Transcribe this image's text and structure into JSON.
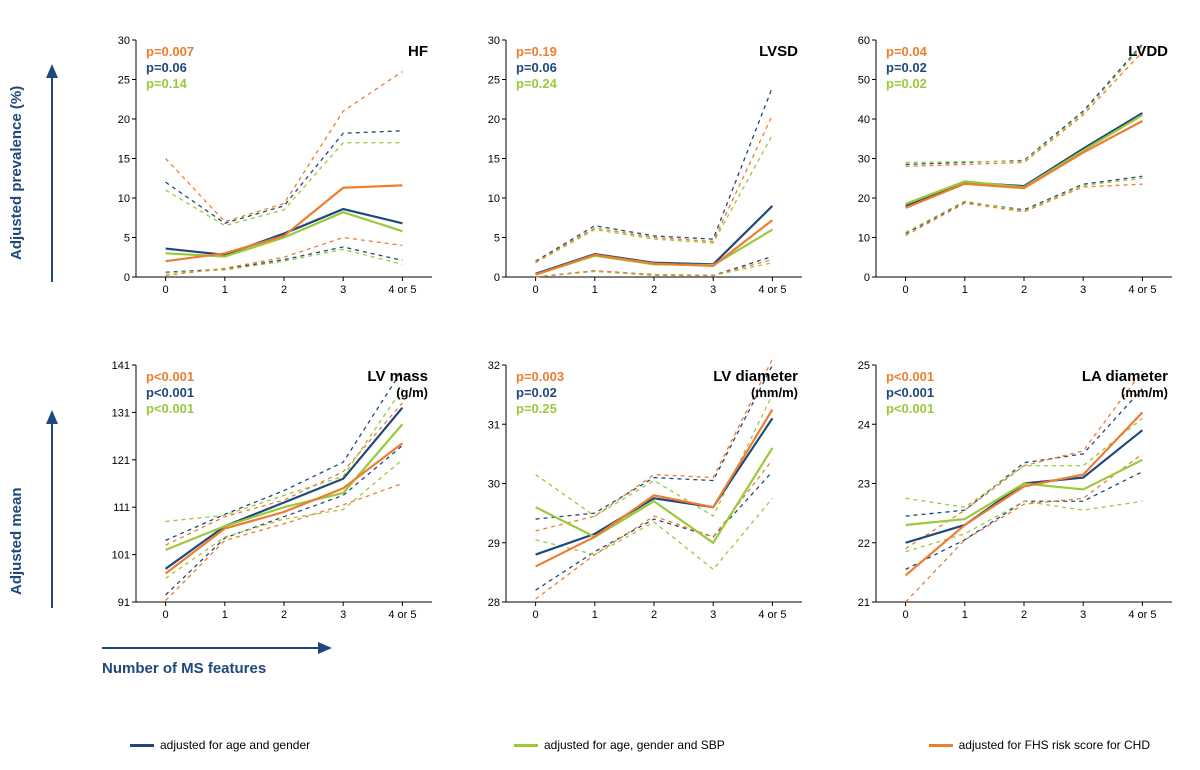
{
  "colors": {
    "navy": "#1f497d",
    "green": "#9ac93a",
    "orange": "#ed7d31",
    "axis": "#000000",
    "label_navy": "#1f497d"
  },
  "fonts": {
    "axis_label_size": 15,
    "tick_size": 11,
    "pvalue_size": 13,
    "panel_title_size": 15
  },
  "y_axis_label_top": "Adjusted prevalence (%)",
  "y_axis_label_bottom": "Adjusted mean",
  "x_axis_label": "Number of MS features",
  "x_categories": [
    "0",
    "1",
    "2",
    "3",
    "4 or 5"
  ],
  "legend": [
    {
      "color": "#1f497d",
      "text": "adjusted for age and gender"
    },
    {
      "color": "#9ac93a",
      "text": "adjusted for age, gender and SBP"
    },
    {
      "color": "#ed7d31",
      "text": "adjusted for FHS risk score for CHD"
    }
  ],
  "panels": [
    {
      "id": "HF",
      "title": "HF",
      "subtitle": null,
      "ylim": [
        0,
        30
      ],
      "ytick_step": 5,
      "pvalues": [
        {
          "color": "#ed7d31",
          "text": "p=0.007"
        },
        {
          "color": "#1f497d",
          "text": "p=0.06"
        },
        {
          "color": "#9ac93a",
          "text": "p=0.14"
        }
      ],
      "series": [
        {
          "color": "#1f497d",
          "values": [
            3.6,
            2.8,
            5.5,
            8.6,
            6.8
          ]
        },
        {
          "color": "#9ac93a",
          "values": [
            3.0,
            2.6,
            5.0,
            8.2,
            5.8
          ]
        },
        {
          "color": "#ed7d31",
          "values": [
            2.0,
            3.0,
            5.2,
            11.3,
            11.6
          ]
        }
      ],
      "ci": [
        {
          "color": "#1f497d",
          "upper": [
            12.0,
            6.8,
            9.0,
            18.2,
            18.5
          ],
          "lower": [
            0.6,
            1.0,
            2.2,
            3.8,
            2.1
          ]
        },
        {
          "color": "#9ac93a",
          "upper": [
            11.0,
            6.5,
            8.5,
            17.0,
            17.0
          ],
          "lower": [
            0.5,
            0.9,
            2.0,
            3.5,
            1.6
          ]
        },
        {
          "color": "#ed7d31",
          "upper": [
            15.0,
            7.0,
            9.3,
            21.0,
            26.0
          ],
          "lower": [
            0.2,
            1.1,
            2.5,
            5.0,
            4.0
          ]
        }
      ]
    },
    {
      "id": "LVSD",
      "title": "LVSD",
      "subtitle": null,
      "ylim": [
        0,
        30
      ],
      "ytick_step": 5,
      "pvalues": [
        {
          "color": "#ed7d31",
          "text": "p=0.19"
        },
        {
          "color": "#1f497d",
          "text": "p=0.06"
        },
        {
          "color": "#9ac93a",
          "text": "p=0.24"
        }
      ],
      "series": [
        {
          "color": "#1f497d",
          "values": [
            0.4,
            2.9,
            1.8,
            1.6,
            9.0
          ]
        },
        {
          "color": "#9ac93a",
          "values": [
            0.3,
            2.7,
            1.6,
            1.5,
            6.0
          ]
        },
        {
          "color": "#ed7d31",
          "values": [
            0.3,
            2.8,
            1.7,
            1.4,
            7.2
          ]
        }
      ],
      "ci": [
        {
          "color": "#1f497d",
          "upper": [
            2.0,
            6.5,
            5.2,
            4.8,
            24.0
          ],
          "lower": [
            0.0,
            0.8,
            0.3,
            0.2,
            2.6
          ]
        },
        {
          "color": "#9ac93a",
          "upper": [
            1.8,
            6.0,
            4.8,
            4.3,
            18.0
          ],
          "lower": [
            0.0,
            0.7,
            0.2,
            0.2,
            1.8
          ]
        },
        {
          "color": "#ed7d31",
          "upper": [
            1.9,
            6.2,
            5.0,
            4.5,
            20.5
          ],
          "lower": [
            0.0,
            0.8,
            0.3,
            0.2,
            2.2
          ]
        }
      ]
    },
    {
      "id": "LVDD",
      "title": "LVDD",
      "subtitle": null,
      "ylim": [
        0,
        60
      ],
      "ytick_step": 10,
      "pvalues": [
        {
          "color": "#ed7d31",
          "text": "p=0.04"
        },
        {
          "color": "#1f497d",
          "text": "p=0.02"
        },
        {
          "color": "#9ac93a",
          "text": "p=0.02"
        }
      ],
      "series": [
        {
          "color": "#1f497d",
          "values": [
            18.0,
            24.0,
            23.0,
            32.5,
            41.5
          ]
        },
        {
          "color": "#9ac93a",
          "values": [
            18.5,
            24.2,
            22.7,
            32.0,
            41.0
          ]
        },
        {
          "color": "#ed7d31",
          "values": [
            17.5,
            23.6,
            22.5,
            31.5,
            39.5
          ]
        }
      ],
      "ci": [
        {
          "color": "#1f497d",
          "upper": [
            28.5,
            29.0,
            29.5,
            42.0,
            59.0
          ],
          "lower": [
            11.0,
            19.0,
            17.0,
            23.5,
            25.5
          ]
        },
        {
          "color": "#9ac93a",
          "upper": [
            29.0,
            29.2,
            29.3,
            41.5,
            58.5
          ],
          "lower": [
            11.3,
            19.2,
            16.7,
            23.2,
            25.0
          ]
        },
        {
          "color": "#ed7d31",
          "upper": [
            28.0,
            28.5,
            29.0,
            41.0,
            57.0
          ],
          "lower": [
            10.5,
            18.7,
            16.5,
            22.8,
            23.5
          ]
        }
      ]
    },
    {
      "id": "LVmass",
      "title": "LV mass",
      "subtitle": "(g/m)",
      "ylim": [
        91,
        141
      ],
      "ytick_step": 10,
      "pvalues": [
        {
          "color": "#ed7d31",
          "text": "p<0.001"
        },
        {
          "color": "#1f497d",
          "text": "p<0.001"
        },
        {
          "color": "#9ac93a",
          "text": "p<0.001"
        }
      ],
      "series": [
        {
          "color": "#1f497d",
          "values": [
            98.0,
            107.0,
            112.0,
            117.0,
            132.0
          ]
        },
        {
          "color": "#9ac93a",
          "values": [
            102.0,
            107.0,
            111.0,
            114.0,
            128.5
          ]
        },
        {
          "color": "#ed7d31",
          "values": [
            97.0,
            106.5,
            110.0,
            115.0,
            124.5
          ]
        }
      ],
      "ci": [
        {
          "color": "#1f497d",
          "upper": [
            104.0,
            109.5,
            114.5,
            120.5,
            140.0
          ],
          "lower": [
            92.5,
            104.5,
            109.0,
            113.5,
            124.0
          ]
        },
        {
          "color": "#9ac93a",
          "upper": [
            108.0,
            109.3,
            113.5,
            117.5,
            136.0
          ],
          "lower": [
            96.0,
            104.7,
            108.5,
            110.5,
            121.0
          ]
        },
        {
          "color": "#ed7d31",
          "upper": [
            103.0,
            109.0,
            112.5,
            118.5,
            133.0
          ],
          "lower": [
            91.3,
            104.0,
            107.5,
            111.5,
            116.0
          ]
        }
      ]
    },
    {
      "id": "LVdiam",
      "title": "LV diameter",
      "subtitle": "(mm/m)",
      "ylim": [
        28,
        32
      ],
      "ytick_step": 1,
      "pvalues": [
        {
          "color": "#ed7d31",
          "text": "p=0.003"
        },
        {
          "color": "#1f497d",
          "text": "p=0.02"
        },
        {
          "color": "#9ac93a",
          "text": "p=0.25"
        }
      ],
      "series": [
        {
          "color": "#1f497d",
          "values": [
            28.8,
            29.15,
            29.75,
            29.6,
            31.1
          ]
        },
        {
          "color": "#9ac93a",
          "values": [
            29.6,
            29.1,
            29.7,
            29.0,
            30.6
          ]
        },
        {
          "color": "#ed7d31",
          "values": [
            28.6,
            29.1,
            29.8,
            29.6,
            31.25
          ]
        }
      ],
      "ci": [
        {
          "color": "#1f497d",
          "upper": [
            29.4,
            29.5,
            30.1,
            30.05,
            32.0
          ],
          "lower": [
            28.2,
            28.85,
            29.4,
            29.1,
            30.2
          ]
        },
        {
          "color": "#9ac93a",
          "upper": [
            30.15,
            29.45,
            30.05,
            29.45,
            31.5
          ],
          "lower": [
            29.05,
            28.8,
            29.35,
            28.55,
            29.75
          ]
        },
        {
          "color": "#ed7d31",
          "upper": [
            29.2,
            29.45,
            30.15,
            30.1,
            32.1
          ],
          "lower": [
            28.05,
            28.8,
            29.45,
            29.1,
            30.4
          ]
        }
      ]
    },
    {
      "id": "LAdiam",
      "title": "LA diameter",
      "subtitle": "(mm/m)",
      "ylim": [
        21,
        25
      ],
      "ytick_step": 1,
      "pvalues": [
        {
          "color": "#ed7d31",
          "text": "p<0.001"
        },
        {
          "color": "#1f497d",
          "text": "p<0.001"
        },
        {
          "color": "#9ac93a",
          "text": "p<0.001"
        }
      ],
      "series": [
        {
          "color": "#1f497d",
          "values": [
            22.0,
            22.3,
            23.0,
            23.1,
            23.9
          ]
        },
        {
          "color": "#9ac93a",
          "values": [
            22.3,
            22.4,
            23.0,
            22.9,
            23.4
          ]
        },
        {
          "color": "#ed7d31",
          "values": [
            21.45,
            22.3,
            22.95,
            23.15,
            24.2
          ]
        }
      ],
      "ci": [
        {
          "color": "#1f497d",
          "upper": [
            22.45,
            22.55,
            23.35,
            23.5,
            24.6
          ],
          "lower": [
            21.55,
            22.05,
            22.7,
            22.7,
            23.2
          ]
        },
        {
          "color": "#9ac93a",
          "upper": [
            22.75,
            22.6,
            23.3,
            23.3,
            24.1
          ],
          "lower": [
            21.85,
            22.15,
            22.7,
            22.55,
            22.7
          ]
        },
        {
          "color": "#ed7d31",
          "upper": [
            21.9,
            22.55,
            23.3,
            23.55,
            24.9
          ],
          "lower": [
            21.0,
            22.05,
            22.65,
            22.75,
            23.5
          ]
        }
      ]
    }
  ]
}
